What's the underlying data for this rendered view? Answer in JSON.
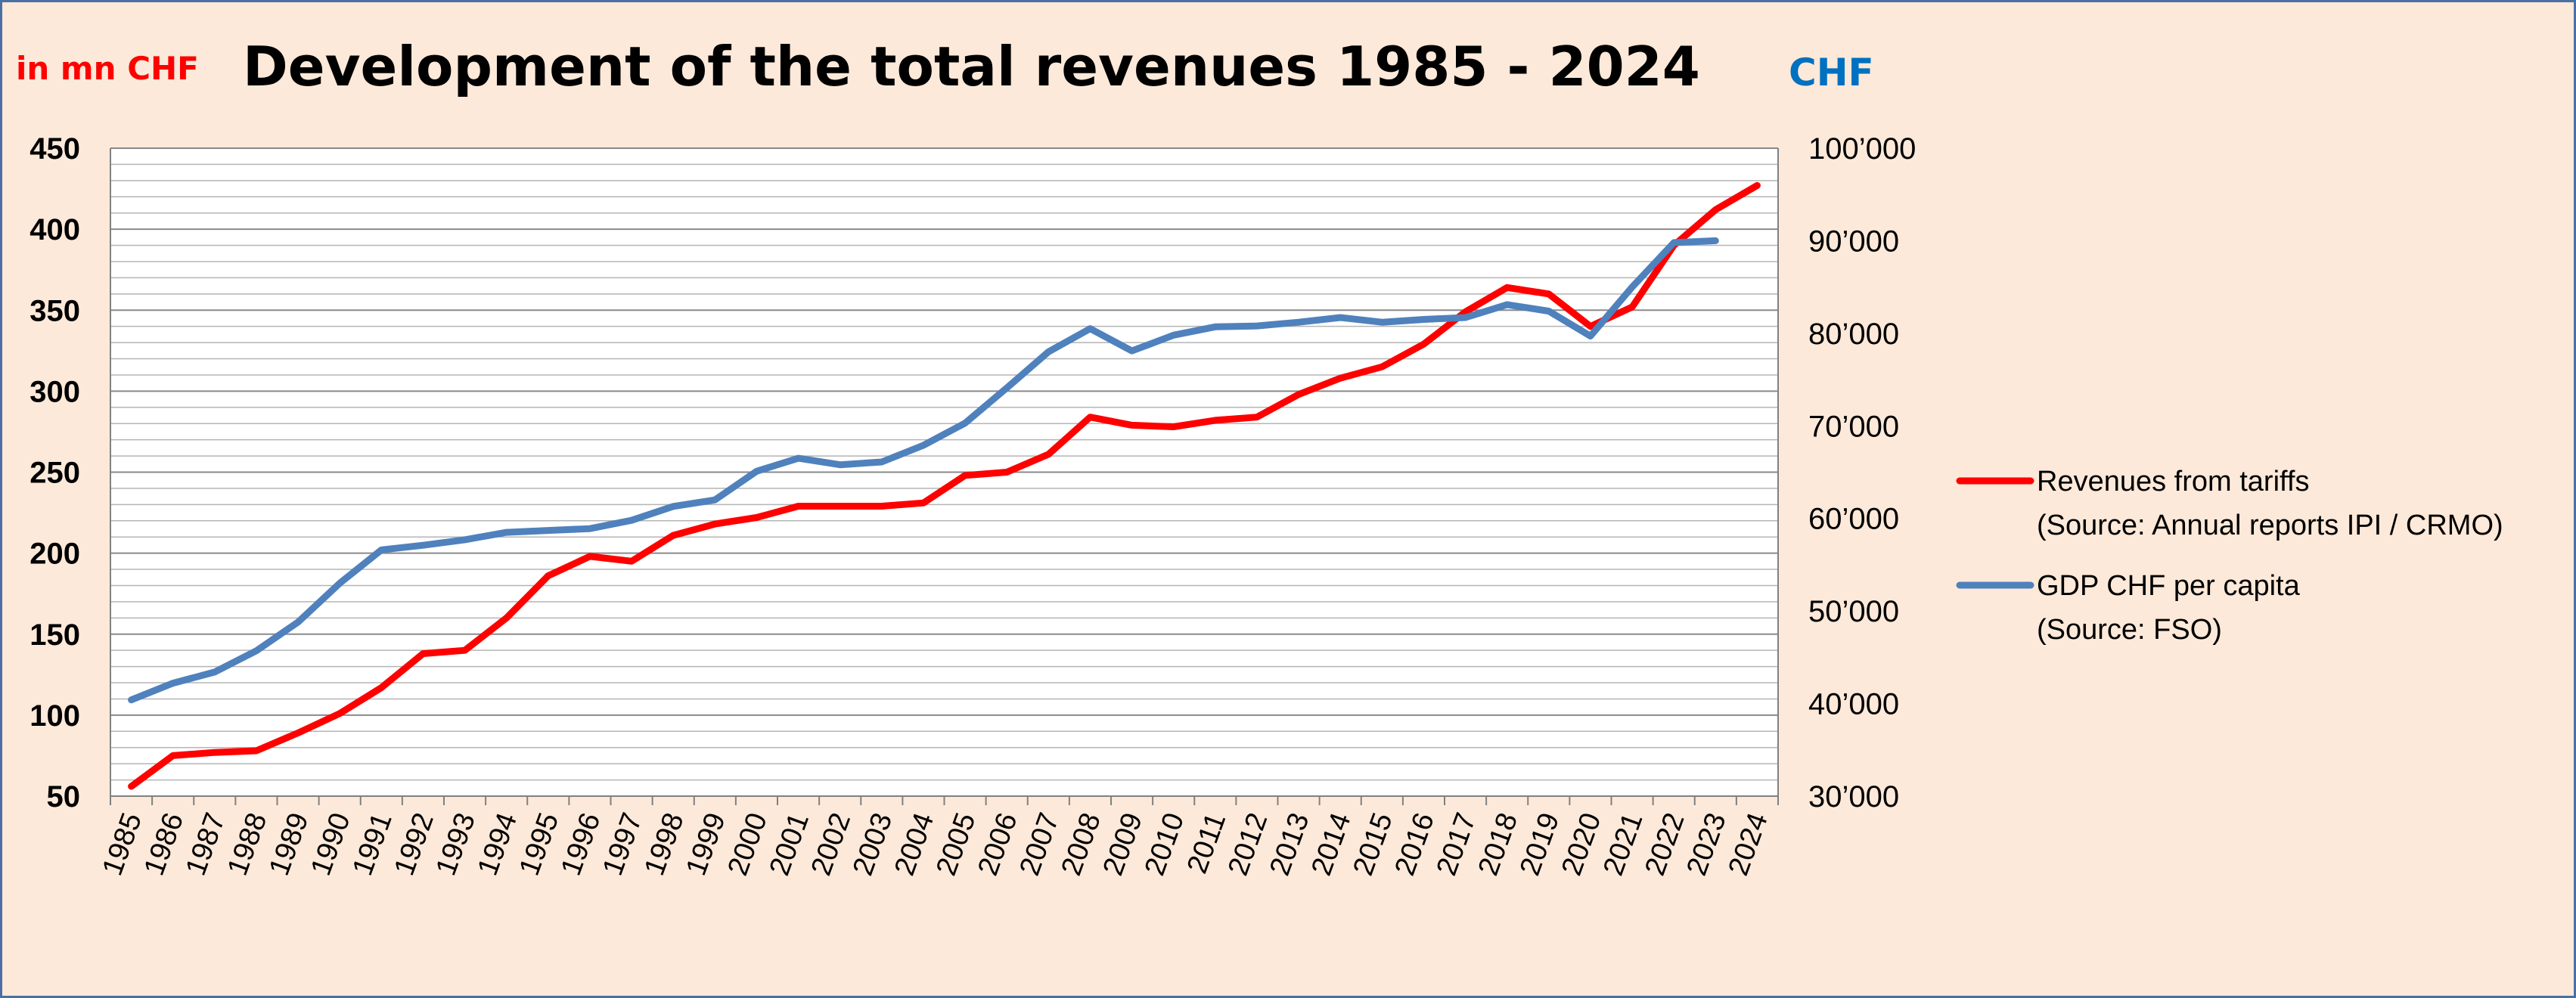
{
  "chart_data": {
    "type": "line",
    "title": "Development of the total revenues 1985 - 2024",
    "y_left_label": "in mn CHF",
    "y_right_label": "CHF",
    "categories": [
      "1985",
      "1986",
      "1987",
      "1988",
      "1989",
      "1990",
      "1991",
      "1992",
      "1993",
      "1994",
      "1995",
      "1996",
      "1997",
      "1998",
      "1999",
      "2000",
      "2001",
      "2002",
      "2003",
      "2004",
      "2005",
      "2006",
      "2007",
      "2008",
      "2009",
      "2010",
      "2011",
      "2012",
      "2013",
      "2014",
      "2015",
      "2016",
      "2017",
      "2018",
      "2019",
      "2020",
      "2021",
      "2022",
      "2023",
      "2024"
    ],
    "y_left": {
      "min": 50,
      "max": 450,
      "ticks": [
        "450",
        "400",
        "350",
        "300",
        "250",
        "200",
        "150",
        "100",
        "50"
      ]
    },
    "y_right": {
      "min": 30000,
      "max": 100000,
      "ticks": [
        "100’000",
        "90’000",
        "80’000",
        "70’000",
        "60’000",
        "50’000",
        "40’000",
        "30’000"
      ]
    },
    "grid": true,
    "legend_position": "right",
    "series": [
      {
        "name": "Revenues from tariffs",
        "source": "(Source: Annual reports IPI / CRMO)",
        "axis": "left",
        "color": "#ff0000",
        "values": [
          56,
          75,
          77,
          78,
          89,
          101,
          117,
          138,
          140,
          160,
          186,
          198,
          195,
          211,
          218,
          222,
          229,
          229,
          229,
          231,
          248,
          250,
          261,
          284,
          279,
          278,
          282,
          284,
          298,
          308,
          315,
          329,
          349,
          364,
          360,
          340,
          352,
          390,
          412,
          427
        ]
      },
      {
        "name": "GDP CHF per capita",
        "source": "(Source: FSO)",
        "axis": "right",
        "color": "#4f81bd",
        "values": [
          40400,
          42200,
          43400,
          45700,
          48800,
          53000,
          56600,
          57100,
          57700,
          58500,
          58700,
          58900,
          59800,
          61300,
          62000,
          65100,
          66500,
          65800,
          66100,
          67900,
          70300,
          74100,
          78000,
          80500,
          78100,
          79800,
          80700,
          80800,
          81200,
          81700,
          81200,
          81500,
          81700,
          83100,
          82400,
          79700,
          85000,
          89800,
          90000,
          null
        ]
      }
    ]
  }
}
